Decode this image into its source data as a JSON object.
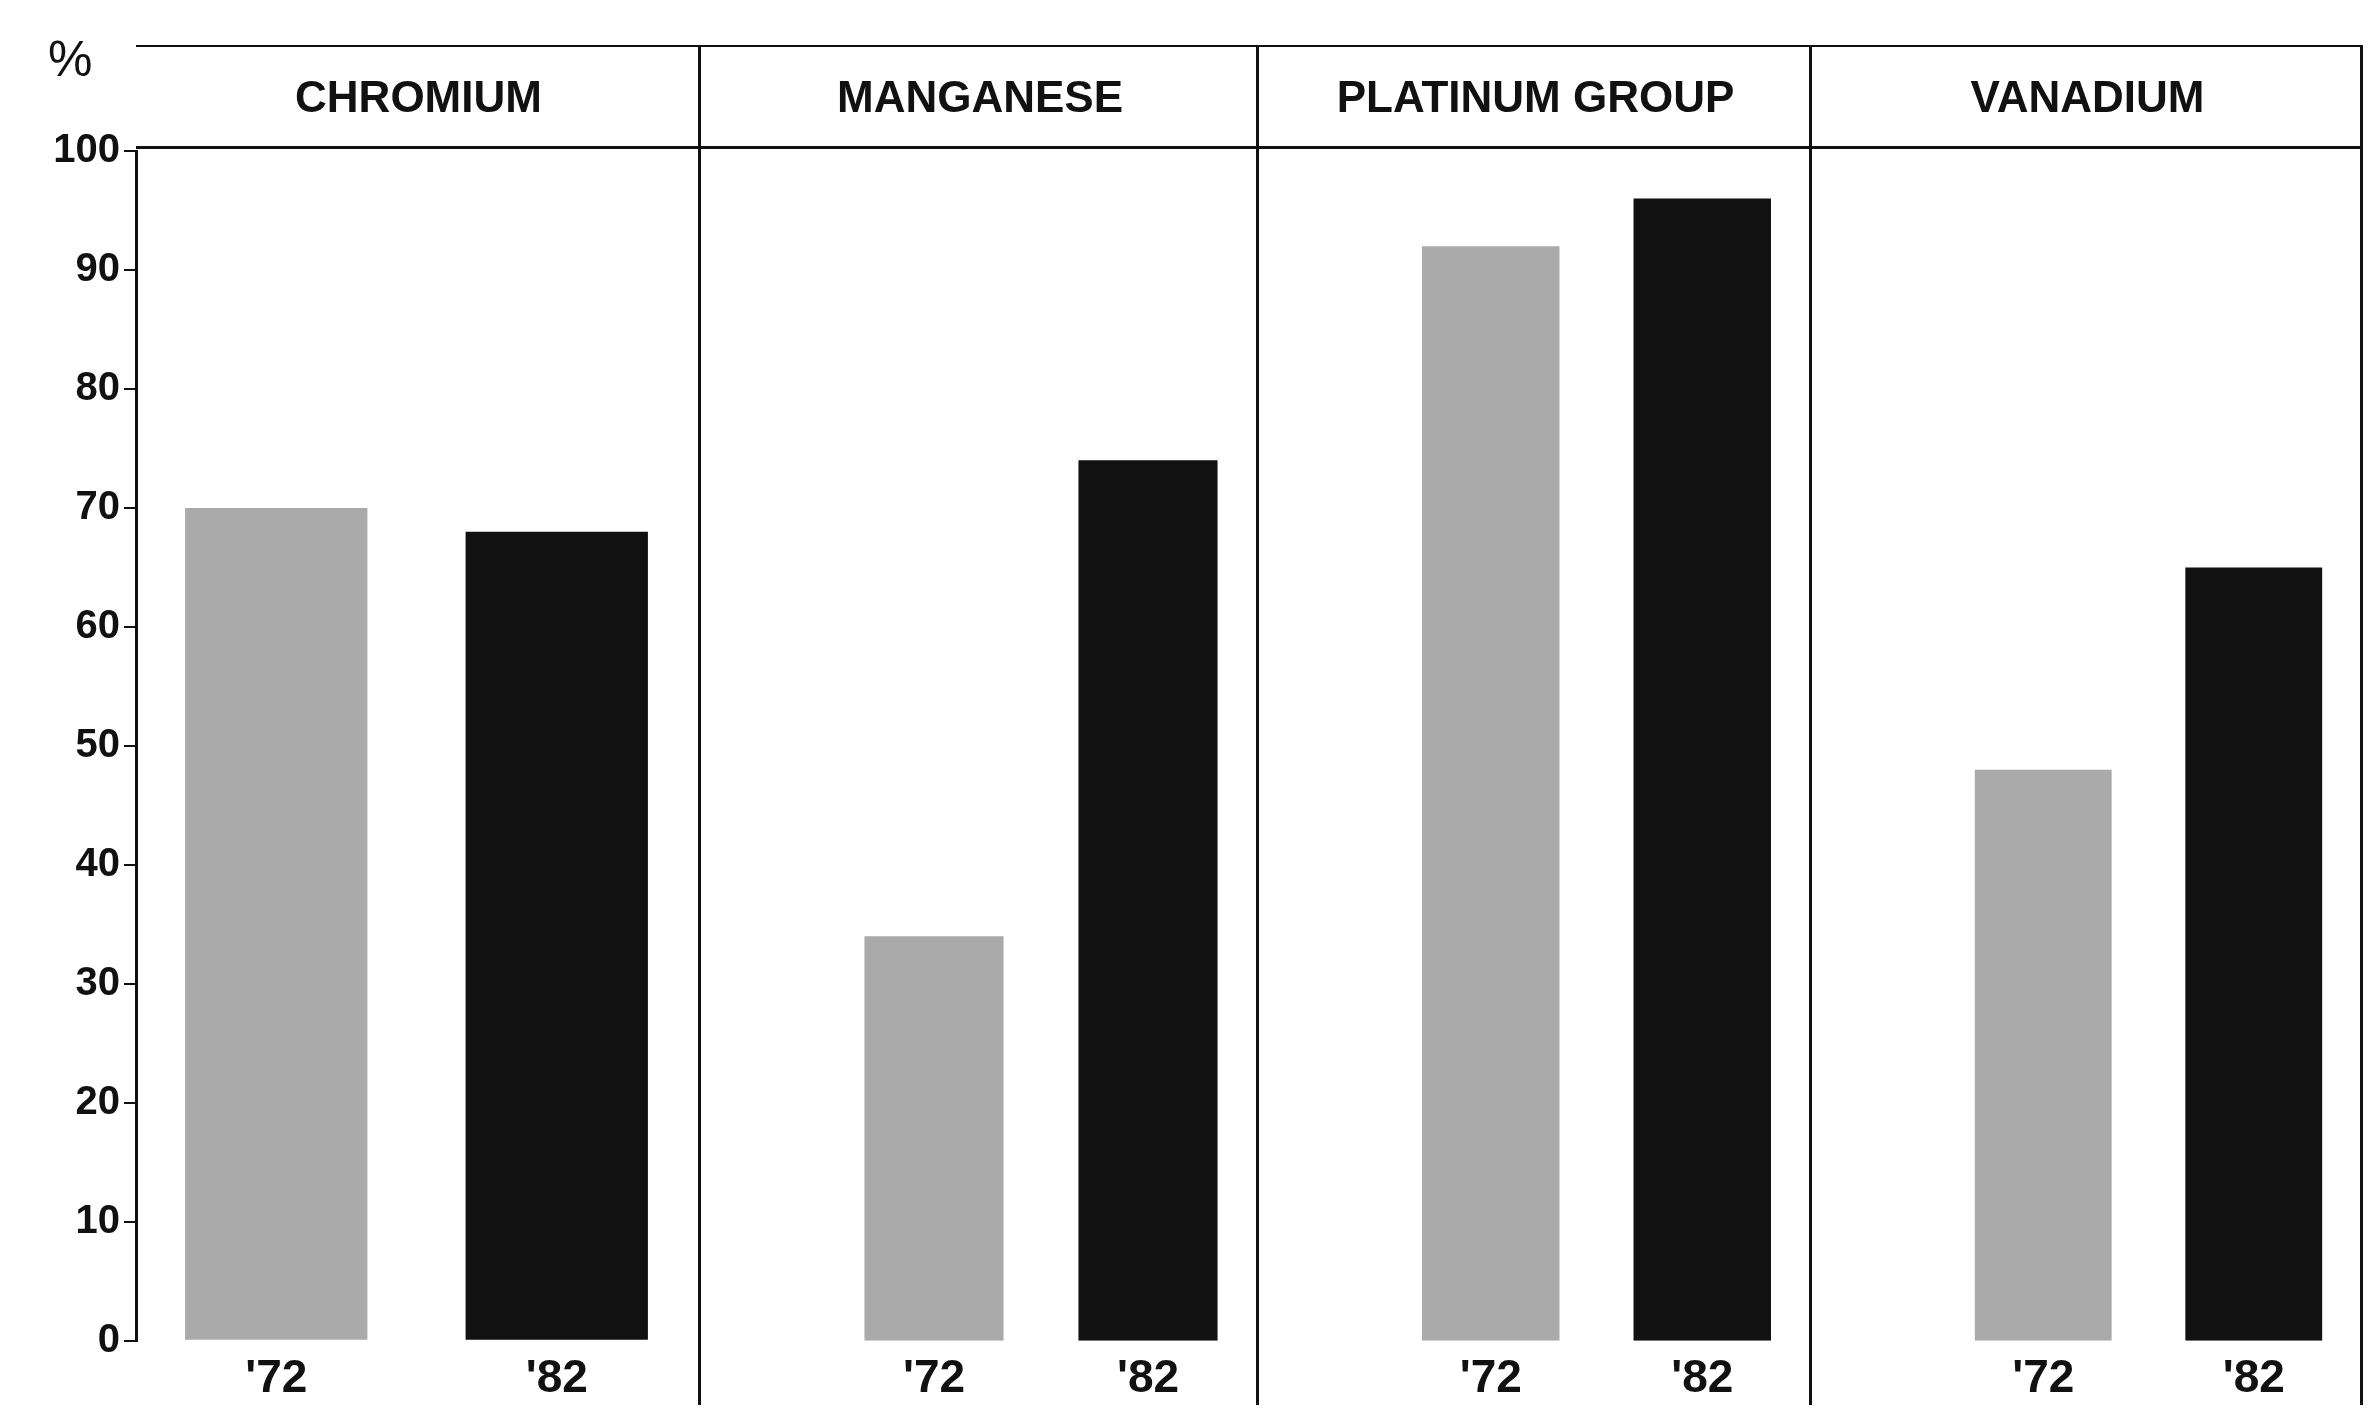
{
  "chart_data": [
    {
      "type": "bar",
      "title": "CHROMIUM",
      "ylabel": "%",
      "categories": [
        "'72",
        "'82"
      ],
      "values": [
        70,
        68
      ],
      "colors": [
        "#aaaaaa",
        "#111111"
      ],
      "ylim": [
        0,
        100
      ],
      "yticks": [
        0,
        10,
        20,
        30,
        40,
        50,
        60,
        70,
        80,
        90,
        100
      ]
    },
    {
      "type": "bar",
      "title": "MANGANESE",
      "categories": [
        "'72",
        "'82"
      ],
      "values": [
        34,
        74
      ],
      "colors": [
        "#aaaaaa",
        "#111111"
      ],
      "ylim": [
        0,
        100
      ],
      "yticks": [
        0,
        10,
        20,
        30,
        40,
        50,
        60,
        70,
        80,
        90,
        100
      ],
      "tick_labels": "x"
    },
    {
      "type": "bar",
      "title": "PLATINUM GROUP",
      "categories": [
        "'72",
        "'82"
      ],
      "values": [
        92,
        96
      ],
      "colors": [
        "#aaaaaa",
        "#111111"
      ],
      "ylim": [
        0,
        100
      ],
      "yticks": [
        0,
        10,
        20,
        30,
        40,
        50,
        60,
        70,
        80,
        90,
        100
      ],
      "tick_labels": "x"
    },
    {
      "type": "bar",
      "title": "VANADIUM",
      "categories": [
        "'72",
        "'82"
      ],
      "values": [
        48,
        65
      ],
      "colors": [
        "#aaaaaa",
        "#111111"
      ],
      "ylim": [
        0,
        100
      ],
      "yticks": [
        0,
        10,
        20,
        30,
        40,
        50,
        60,
        70,
        80,
        90,
        100
      ],
      "tick_labels": "x"
    }
  ]
}
